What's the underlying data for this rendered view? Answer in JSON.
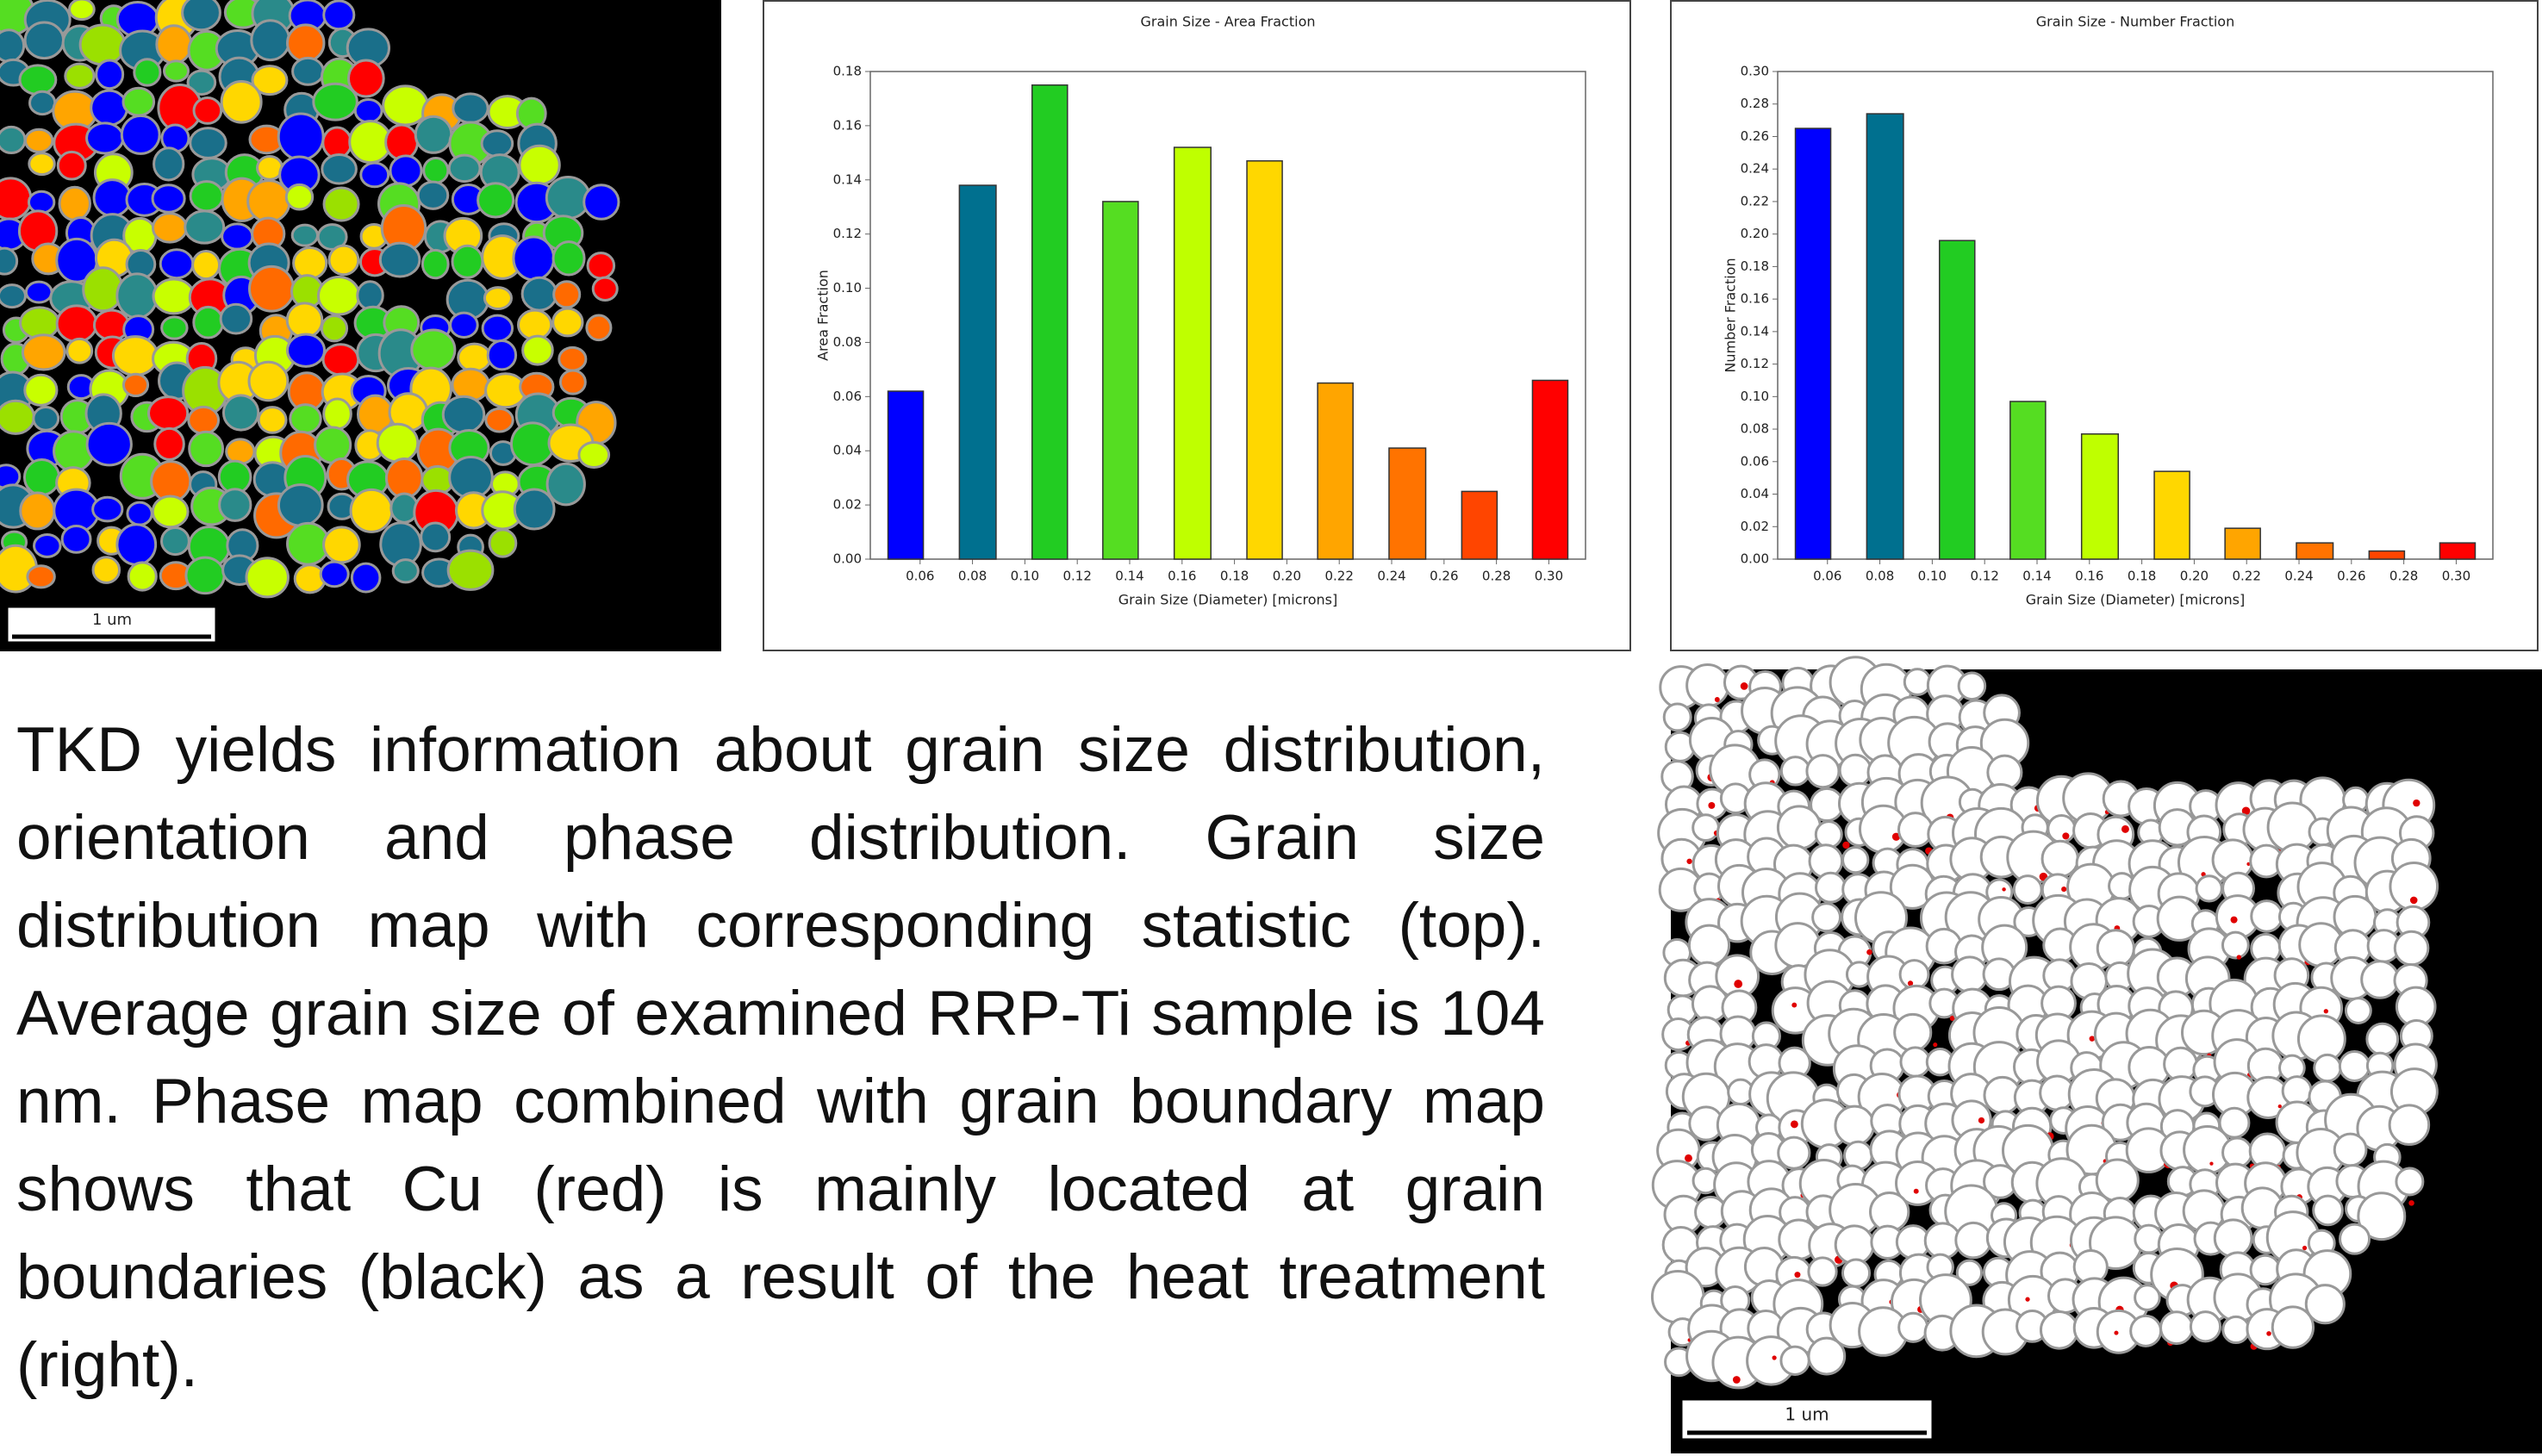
{
  "chart_data": [
    {
      "type": "histogram",
      "title": "Grain Size - Area Fraction",
      "x_label": "Grain Size (Diameter) [microns]",
      "y_label": "Area Fraction",
      "bins": [
        0.041,
        0.068,
        0.096,
        0.123,
        0.15,
        0.178,
        0.205,
        0.232,
        0.26,
        0.287,
        0.314
      ],
      "values": [
        0.062,
        0.138,
        0.175,
        0.132,
        0.152,
        0.147,
        0.065,
        0.041,
        0.025,
        0.066
      ],
      "colors": [
        "#0000ff",
        "#00708f",
        "#22cc22",
        "#55dd22",
        "#bfff00",
        "#ffd700",
        "#ffa500",
        "#ff7300",
        "#ff4500",
        "#ff0000"
      ],
      "xlim": [
        0.041,
        0.314
      ],
      "ylim": [
        0,
        0.18
      ],
      "xticks": [
        0.06,
        0.08,
        {
          "value": 0.1,
          "label": "0.10"
        },
        0.12,
        0.14,
        0.16,
        0.18,
        {
          "value": 0.2,
          "label": "0.20"
        },
        0.22,
        0.24,
        0.26,
        0.28,
        {
          "value": 0.3,
          "label": "0.30"
        }
      ],
      "yticks": [
        {
          "value": 0,
          "label": "0.00"
        },
        0.02,
        0.04,
        0.06,
        0.08,
        {
          "value": 0.1,
          "label": "0.10"
        },
        0.12,
        0.14,
        0.16,
        0.18
      ]
    },
    {
      "type": "histogram",
      "title": "Grain Size - Number Fraction",
      "x_label": "Grain Size (Diameter) [microns]",
      "y_label": "Number Fraction",
      "bins": [
        0.041,
        0.068,
        0.096,
        0.123,
        0.15,
        0.178,
        0.205,
        0.232,
        0.26,
        0.287,
        0.314
      ],
      "values": [
        0.265,
        0.274,
        0.196,
        0.097,
        0.077,
        0.054,
        0.019,
        0.01,
        0.005,
        0.01
      ],
      "colors": [
        "#0000ff",
        "#00708f",
        "#22cc22",
        "#55dd22",
        "#bfff00",
        "#ffd700",
        "#ffa500",
        "#ff7300",
        "#ff4500",
        "#ff0000"
      ],
      "xlim": [
        0.041,
        0.314
      ],
      "ylim": [
        0,
        0.3
      ],
      "xticks": [
        0.06,
        0.08,
        {
          "value": 0.1,
          "label": "0.10"
        },
        0.12,
        0.14,
        0.16,
        0.18,
        {
          "value": 0.2,
          "label": "0.20"
        },
        0.22,
        0.24,
        0.26,
        0.28,
        {
          "value": 0.3,
          "label": "0.30"
        }
      ],
      "yticks": [
        {
          "value": 0,
          "label": "0.00"
        },
        0.02,
        0.04,
        0.06,
        0.08,
        {
          "value": 0.1,
          "label": "0.10"
        },
        0.12,
        0.14,
        0.16,
        0.18,
        {
          "value": 0.2,
          "label": "0.20"
        },
        0.22,
        0.24,
        0.26,
        0.28,
        {
          "value": 0.3,
          "label": "0.30"
        }
      ]
    }
  ],
  "grain_map": {
    "scale_label": "1 um"
  },
  "phase_map": {
    "scale_label": "1 um"
  },
  "paragraph": "TKD yields information about grain size distribution, orientation and phase distribution. Grain size distribution map  with corresponding statistic (top). Average grain size of examined RRP-Ti sample is 104 nm. Phase map combined with grain boundary map shows that Cu (red) is mainly located at grain boundaries (black) as a result of the heat treatment (right)."
}
